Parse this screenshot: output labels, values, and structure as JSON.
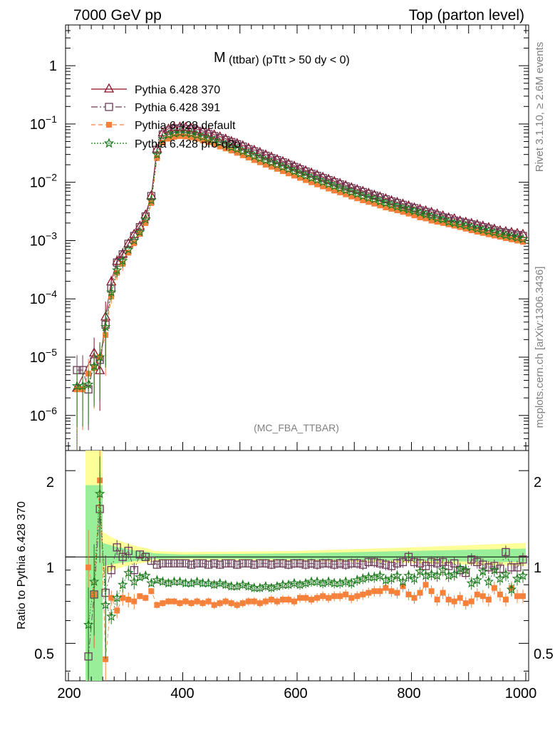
{
  "header": {
    "left": "7000 GeV pp",
    "right": "Top (parton level)"
  },
  "side_text": {
    "rivet": "Rivet 3.1.10, ≥ 2.6M events",
    "mcplots": "mcplots.cern.ch [arXiv:1306.3436]"
  },
  "chart_data": {
    "type": "line",
    "title_main": "M",
    "title_sub": "(ttbar) (pTtt > 50 dy < 0)",
    "watermark": "(MC_FBA_TTBAR)",
    "xlim": [
      195,
      1005
    ],
    "ylim_main": [
      2.5e-07,
      5
    ],
    "yscale_main": "log",
    "ylim_ratio": [
      0.37,
      2.35
    ],
    "yscale_ratio": "log",
    "ylabel_ratio": "Ratio to Pythia 6.428 370",
    "x_ticks": [
      "200",
      "400",
      "600",
      "800",
      "1000"
    ],
    "y_ticks_main": [
      "1",
      "10^-1",
      "10^-2",
      "10^-3",
      "10^-4",
      "10^-5",
      "10^-6"
    ],
    "y_ticks_ratio": [
      "2",
      "1",
      "0.5"
    ],
    "legend_placement": "top-left",
    "series": [
      {
        "name": "Pythia 6.428 370",
        "color": "#8b0f24",
        "marker": "triangle",
        "style": "solid",
        "x": [
          215,
          245,
          255,
          265,
          275,
          285,
          295,
          305,
          315,
          325,
          335,
          345,
          355,
          365,
          375,
          385,
          395,
          405,
          415,
          425,
          435,
          445,
          455,
          465,
          475,
          485,
          495,
          505,
          515,
          525,
          535,
          545,
          555,
          565,
          575,
          585,
          595,
          605,
          615,
          625,
          635,
          645,
          655,
          665,
          675,
          685,
          695,
          705,
          715,
          725,
          735,
          745,
          755,
          765,
          775,
          785,
          795,
          805,
          815,
          825,
          835,
          845,
          855,
          865,
          875,
          885,
          895,
          905,
          915,
          925,
          935,
          945,
          955,
          965,
          975,
          985,
          995
        ],
        "y": [
          3e-06,
          1.2e-05,
          6e-06,
          5e-05,
          0.0002,
          0.00045,
          0.0006,
          0.0009,
          0.0013,
          0.0018,
          0.0028,
          0.006,
          0.038,
          0.072,
          0.083,
          0.088,
          0.09,
          0.088,
          0.085,
          0.081,
          0.076,
          0.071,
          0.066,
          0.061,
          0.056,
          0.051,
          0.047,
          0.043,
          0.039,
          0.036,
          0.033,
          0.03,
          0.0275,
          0.025,
          0.023,
          0.021,
          0.0192,
          0.0175,
          0.016,
          0.0147,
          0.0135,
          0.0124,
          0.0114,
          0.0105,
          0.0097,
          0.0089,
          0.0082,
          0.0076,
          0.0071,
          0.0066,
          0.0061,
          0.0057,
          0.0053,
          0.0049,
          0.0046,
          0.0043,
          0.004,
          0.0037,
          0.0035,
          0.0033,
          0.0031,
          0.0029,
          0.0027,
          0.0025,
          0.0024,
          0.0022,
          0.0021,
          0.002,
          0.0019,
          0.0018,
          0.0017,
          0.0016,
          0.0015,
          0.00145,
          0.0014,
          0.00135,
          0.0013
        ]
      },
      {
        "name": "Pythia 6.428 391",
        "color": "#6b3a56",
        "marker": "square",
        "style": "dashdot",
        "x": [
          215,
          225,
          235,
          245,
          255,
          265,
          275,
          285,
          295,
          305,
          315,
          325,
          335,
          345,
          355,
          365,
          375,
          385,
          395,
          405,
          415,
          425,
          435,
          445,
          455,
          465,
          475,
          485,
          495,
          505,
          515,
          525,
          535,
          545,
          555,
          565,
          575,
          585,
          595,
          605,
          615,
          625,
          635,
          645,
          655,
          665,
          675,
          685,
          695,
          705,
          715,
          725,
          735,
          745,
          755,
          765,
          775,
          785,
          795,
          805,
          815,
          825,
          835,
          845,
          855,
          865,
          875,
          885,
          895,
          905,
          915,
          925,
          935,
          945,
          955,
          965,
          975,
          985,
          995
        ],
        "y": [
          6e-06,
          6e-06,
          2.8e-06,
          8.5e-06,
          9e-06,
          3.6e-05,
          0.00015,
          0.00042,
          0.00058,
          0.00088,
          0.0012,
          0.0017,
          0.0026,
          0.0058,
          0.036,
          0.066,
          0.077,
          0.082,
          0.084,
          0.082,
          0.08,
          0.076,
          0.072,
          0.067,
          0.062,
          0.057,
          0.053,
          0.049,
          0.045,
          0.041,
          0.037,
          0.034,
          0.031,
          0.0285,
          0.026,
          0.024,
          0.022,
          0.02,
          0.0183,
          0.0167,
          0.0153,
          0.014,
          0.0129,
          0.0118,
          0.0109,
          0.01,
          0.0092,
          0.0085,
          0.0079,
          0.0073,
          0.0068,
          0.0063,
          0.0059,
          0.0055,
          0.0051,
          0.0047,
          0.0044,
          0.0041,
          0.0038,
          0.0036,
          0.0033,
          0.0031,
          0.0029,
          0.0027,
          0.0025,
          0.0024,
          0.0022,
          0.0021,
          0.002,
          0.0019,
          0.0018,
          0.0017,
          0.0016,
          0.0015,
          0.0014,
          0.00135,
          0.0013,
          0.00125,
          0.0012
        ]
      },
      {
        "name": "Pythia 6.428 default",
        "color": "#f5813a",
        "marker": "filled-square",
        "style": "dashed",
        "x": [
          215,
          225,
          235,
          245,
          255,
          265,
          275,
          285,
          295,
          305,
          315,
          325,
          335,
          345,
          355,
          365,
          375,
          385,
          395,
          405,
          415,
          425,
          435,
          445,
          455,
          465,
          475,
          485,
          495,
          505,
          515,
          525,
          535,
          545,
          555,
          565,
          575,
          585,
          595,
          605,
          615,
          625,
          635,
          645,
          655,
          665,
          675,
          685,
          695,
          705,
          715,
          725,
          735,
          745,
          755,
          765,
          775,
          785,
          795,
          805,
          815,
          825,
          835,
          845,
          855,
          865,
          875,
          885,
          895,
          905,
          915,
          925,
          935,
          945,
          955,
          965,
          975,
          985,
          995
        ],
        "y": [
          2.8e-06,
          2.8e-06,
          5.2e-06,
          6.5e-06,
          1e-05,
          2.4e-05,
          0.00011,
          0.00028,
          0.0004,
          0.00062,
          0.0009,
          0.0013,
          0.002,
          0.0044,
          0.026,
          0.048,
          0.056,
          0.06,
          0.062,
          0.061,
          0.059,
          0.056,
          0.052,
          0.049,
          0.045,
          0.041,
          0.038,
          0.035,
          0.032,
          0.029,
          0.0265,
          0.024,
          0.022,
          0.02,
          0.0185,
          0.017,
          0.0155,
          0.0142,
          0.013,
          0.0119,
          0.0109,
          0.01,
          0.0092,
          0.0085,
          0.0078,
          0.0072,
          0.0067,
          0.0062,
          0.0057,
          0.0053,
          0.0049,
          0.0046,
          0.0043,
          0.004,
          0.0037,
          0.0035,
          0.0033,
          0.0031,
          0.0029,
          0.0027,
          0.0025,
          0.0024,
          0.0022,
          0.0021,
          0.002,
          0.0019,
          0.0018,
          0.0017,
          0.0016,
          0.0015,
          0.00142,
          0.00135,
          0.00128,
          0.00122,
          0.00116,
          0.0011,
          0.00105,
          0.001,
          0.00095
        ]
      },
      {
        "name": "Pythia 6.428 pro-q2o",
        "color": "#1c7a1c",
        "marker": "star",
        "style": "dotted",
        "x": [
          215,
          225,
          235,
          245,
          255,
          265,
          275,
          285,
          295,
          305,
          315,
          325,
          335,
          345,
          355,
          365,
          375,
          385,
          395,
          405,
          415,
          425,
          435,
          445,
          455,
          465,
          475,
          485,
          495,
          505,
          515,
          525,
          535,
          545,
          555,
          565,
          575,
          585,
          595,
          605,
          615,
          625,
          635,
          645,
          655,
          665,
          675,
          685,
          695,
          705,
          715,
          725,
          735,
          745,
          755,
          765,
          775,
          785,
          795,
          805,
          815,
          825,
          835,
          845,
          855,
          865,
          875,
          885,
          895,
          905,
          915,
          925,
          935,
          945,
          955,
          965,
          975,
          985,
          995
        ],
        "y": [
          3.2e-06,
          3.2e-06,
          3.4e-06,
          7e-06,
          1e-05,
          3.3e-05,
          0.00013,
          0.00031,
          0.00045,
          0.0007,
          0.001,
          0.0014,
          0.0023,
          0.0049,
          0.03,
          0.055,
          0.065,
          0.069,
          0.071,
          0.07,
          0.068,
          0.064,
          0.06,
          0.056,
          0.052,
          0.048,
          0.044,
          0.04,
          0.037,
          0.034,
          0.031,
          0.028,
          0.0258,
          0.0237,
          0.0218,
          0.02,
          0.0183,
          0.0168,
          0.0154,
          0.0141,
          0.013,
          0.0119,
          0.011,
          0.0101,
          0.0093,
          0.0086,
          0.0079,
          0.0073,
          0.0068,
          0.0063,
          0.0058,
          0.0054,
          0.0051,
          0.0047,
          0.0044,
          0.0041,
          0.0038,
          0.0036,
          0.0034,
          0.0032,
          0.003,
          0.0028,
          0.0026,
          0.0024,
          0.0023,
          0.0021,
          0.002,
          0.0019,
          0.0018,
          0.0017,
          0.0016,
          0.00152,
          0.00145,
          0.00138,
          0.0013,
          0.00124,
          0.00118,
          0.00112,
          0.00106
        ]
      }
    ],
    "ratio_series": [
      {
        "name": "Pythia 6.428 391",
        "color": "#6b3a56",
        "marker": "square",
        "x": [
          235,
          245,
          255,
          265,
          275,
          285,
          295,
          305,
          315,
          325,
          335,
          345,
          355,
          365,
          375,
          385,
          395,
          405,
          415,
          425,
          435,
          445,
          455,
          465,
          475,
          485,
          495,
          505,
          515,
          525,
          535,
          545,
          555,
          565,
          575,
          585,
          595,
          605,
          615,
          625,
          635,
          645,
          655,
          665,
          675,
          685,
          695,
          705,
          715,
          725,
          735,
          745,
          755,
          765,
          775,
          785,
          795,
          805,
          815,
          825,
          835,
          845,
          855,
          865,
          875,
          885,
          895,
          905,
          915,
          925,
          935,
          945,
          955,
          965,
          975,
          985,
          995
        ],
        "y": [
          0.45,
          0.74,
          1.47,
          0.75,
          0.9,
          1.08,
          1.0,
          1.05,
          0.9,
          1.02,
          1.0,
          0.97,
          0.94,
          0.95,
          0.95,
          0.95,
          0.95,
          0.95,
          0.94,
          0.95,
          0.95,
          0.94,
          0.95,
          0.94,
          0.95,
          0.95,
          0.94,
          0.95,
          0.95,
          0.94,
          0.95,
          0.95,
          0.94,
          0.95,
          0.95,
          0.94,
          0.95,
          0.95,
          0.94,
          0.95,
          0.94,
          0.95,
          0.95,
          0.94,
          0.95,
          0.94,
          0.95,
          0.95,
          0.94,
          0.96,
          0.96,
          0.95,
          0.94,
          0.93,
          0.95,
          0.96,
          1.0,
          0.96,
          0.95,
          0.93,
          0.96,
          0.95,
          0.96,
          0.93,
          0.95,
          0.9,
          0.88,
          0.98,
          0.96,
          0.94,
          0.92,
          0.93,
          0.91,
          1.04,
          0.92,
          0.92,
          0.98
        ]
      },
      {
        "name": "Pythia 6.428 default",
        "color": "#f5813a",
        "marker": "filled-square",
        "x": [
          235,
          245,
          255,
          265,
          275,
          285,
          295,
          305,
          315,
          325,
          335,
          345,
          355,
          365,
          375,
          385,
          395,
          405,
          415,
          425,
          435,
          445,
          455,
          465,
          475,
          485,
          495,
          505,
          515,
          525,
          535,
          545,
          555,
          565,
          575,
          585,
          595,
          605,
          615,
          625,
          635,
          645,
          655,
          665,
          675,
          685,
          695,
          705,
          715,
          725,
          735,
          745,
          755,
          765,
          775,
          785,
          795,
          805,
          815,
          825,
          835,
          845,
          855,
          865,
          875,
          885,
          895,
          905,
          915,
          925,
          935,
          945,
          955,
          965,
          975,
          985,
          995
        ],
        "y": [
          0.92,
          0.74,
          1.85,
          0.44,
          0.72,
          0.65,
          0.72,
          0.71,
          0.7,
          0.73,
          0.72,
          0.76,
          0.68,
          0.69,
          0.7,
          0.7,
          0.69,
          0.7,
          0.69,
          0.7,
          0.69,
          0.7,
          0.68,
          0.69,
          0.7,
          0.69,
          0.68,
          0.69,
          0.7,
          0.7,
          0.69,
          0.7,
          0.71,
          0.7,
          0.71,
          0.71,
          0.7,
          0.72,
          0.72,
          0.71,
          0.72,
          0.73,
          0.72,
          0.73,
          0.73,
          0.74,
          0.72,
          0.73,
          0.74,
          0.75,
          0.76,
          0.76,
          0.78,
          0.76,
          0.75,
          0.79,
          0.74,
          0.72,
          0.75,
          0.8,
          0.76,
          0.71,
          0.75,
          0.71,
          0.7,
          0.72,
          0.69,
          0.7,
          0.74,
          0.73,
          0.71,
          0.78,
          0.74,
          0.71,
          0.78,
          0.73,
          0.73
        ]
      },
      {
        "name": "Pythia 6.428 pro-q2o",
        "color": "#1c7a1c",
        "marker": "star",
        "x": [
          235,
          245,
          255,
          265,
          275,
          285,
          295,
          305,
          315,
          325,
          335,
          345,
          355,
          365,
          375,
          385,
          395,
          405,
          415,
          425,
          435,
          445,
          455,
          465,
          475,
          485,
          495,
          505,
          515,
          525,
          535,
          545,
          555,
          565,
          575,
          585,
          595,
          605,
          615,
          625,
          635,
          645,
          655,
          665,
          675,
          685,
          695,
          705,
          715,
          725,
          735,
          745,
          755,
          765,
          775,
          785,
          795,
          805,
          815,
          825,
          835,
          845,
          855,
          865,
          875,
          885,
          895,
          905,
          915,
          925,
          935,
          945,
          955,
          965,
          975,
          985,
          995
        ],
        "y": [
          0.58,
          0.82,
          1.66,
          0.68,
          0.62,
          0.72,
          0.8,
          0.88,
          0.82,
          0.85,
          0.86,
          0.81,
          0.83,
          0.82,
          0.81,
          0.82,
          0.82,
          0.81,
          0.81,
          0.82,
          0.81,
          0.81,
          0.8,
          0.81,
          0.8,
          0.79,
          0.79,
          0.8,
          0.79,
          0.78,
          0.78,
          0.79,
          0.78,
          0.79,
          0.8,
          0.8,
          0.81,
          0.8,
          0.81,
          0.82,
          0.82,
          0.81,
          0.82,
          0.81,
          0.81,
          0.82,
          0.81,
          0.83,
          0.84,
          0.85,
          0.85,
          0.86,
          0.83,
          0.84,
          0.86,
          0.82,
          0.86,
          0.84,
          0.89,
          0.86,
          0.87,
          0.86,
          0.9,
          0.86,
          0.87,
          0.91,
          0.9,
          0.81,
          0.83,
          0.89,
          0.82,
          0.9,
          0.84,
          0.87,
          0.77,
          0.84,
          0.86
        ]
      }
    ]
  }
}
